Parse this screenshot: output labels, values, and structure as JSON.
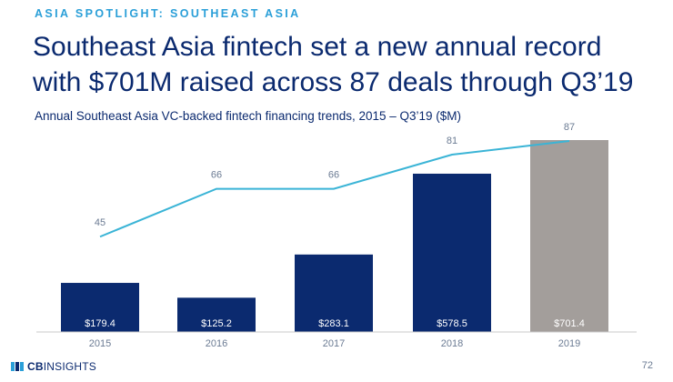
{
  "header": {
    "kicker": "ASIA SPOTLIGHT: SOUTHEAST ASIA",
    "headline_line1": "Southeast Asia fintech set a new annual record",
    "headline_line2": "with $701M raised across 87 deals through Q3’19"
  },
  "chart_data": {
    "type": "bar",
    "title": "Annual Southeast Asia VC-backed fintech financing trends, 2015 – Q3’19 ($M)",
    "categories": [
      "2015",
      "2016",
      "2017",
      "2018",
      "2019"
    ],
    "series": [
      {
        "kind": "bar",
        "values": [
          179.4,
          125.2,
          283.1,
          578.5,
          701.4
        ],
        "labels": [
          "$179.4",
          "$125.2",
          "$283.1",
          "$578.5",
          "$701.4"
        ],
        "colors": [
          "#0b2a6f",
          "#0b2a6f",
          "#0b2a6f",
          "#0b2a6f",
          "#a39e9b"
        ]
      },
      {
        "kind": "line",
        "values": [
          45,
          66,
          66,
          81,
          87
        ],
        "labels": [
          "45",
          "66",
          "66",
          "81",
          "87"
        ],
        "color": "#3ab4d6"
      }
    ],
    "ylim_bars": [
      0,
      701.4
    ],
    "ylim_line": [
      0,
      87
    ],
    "grid": false
  },
  "colors": {
    "accent": "#2a9fd8",
    "navy": "#0b2a6f",
    "bar_highlight": "#a39e9b",
    "line": "#3ab4d6"
  },
  "footer": {
    "logo_cb": "CB",
    "logo_insights": "INSIGHTS",
    "page_number": "72"
  }
}
